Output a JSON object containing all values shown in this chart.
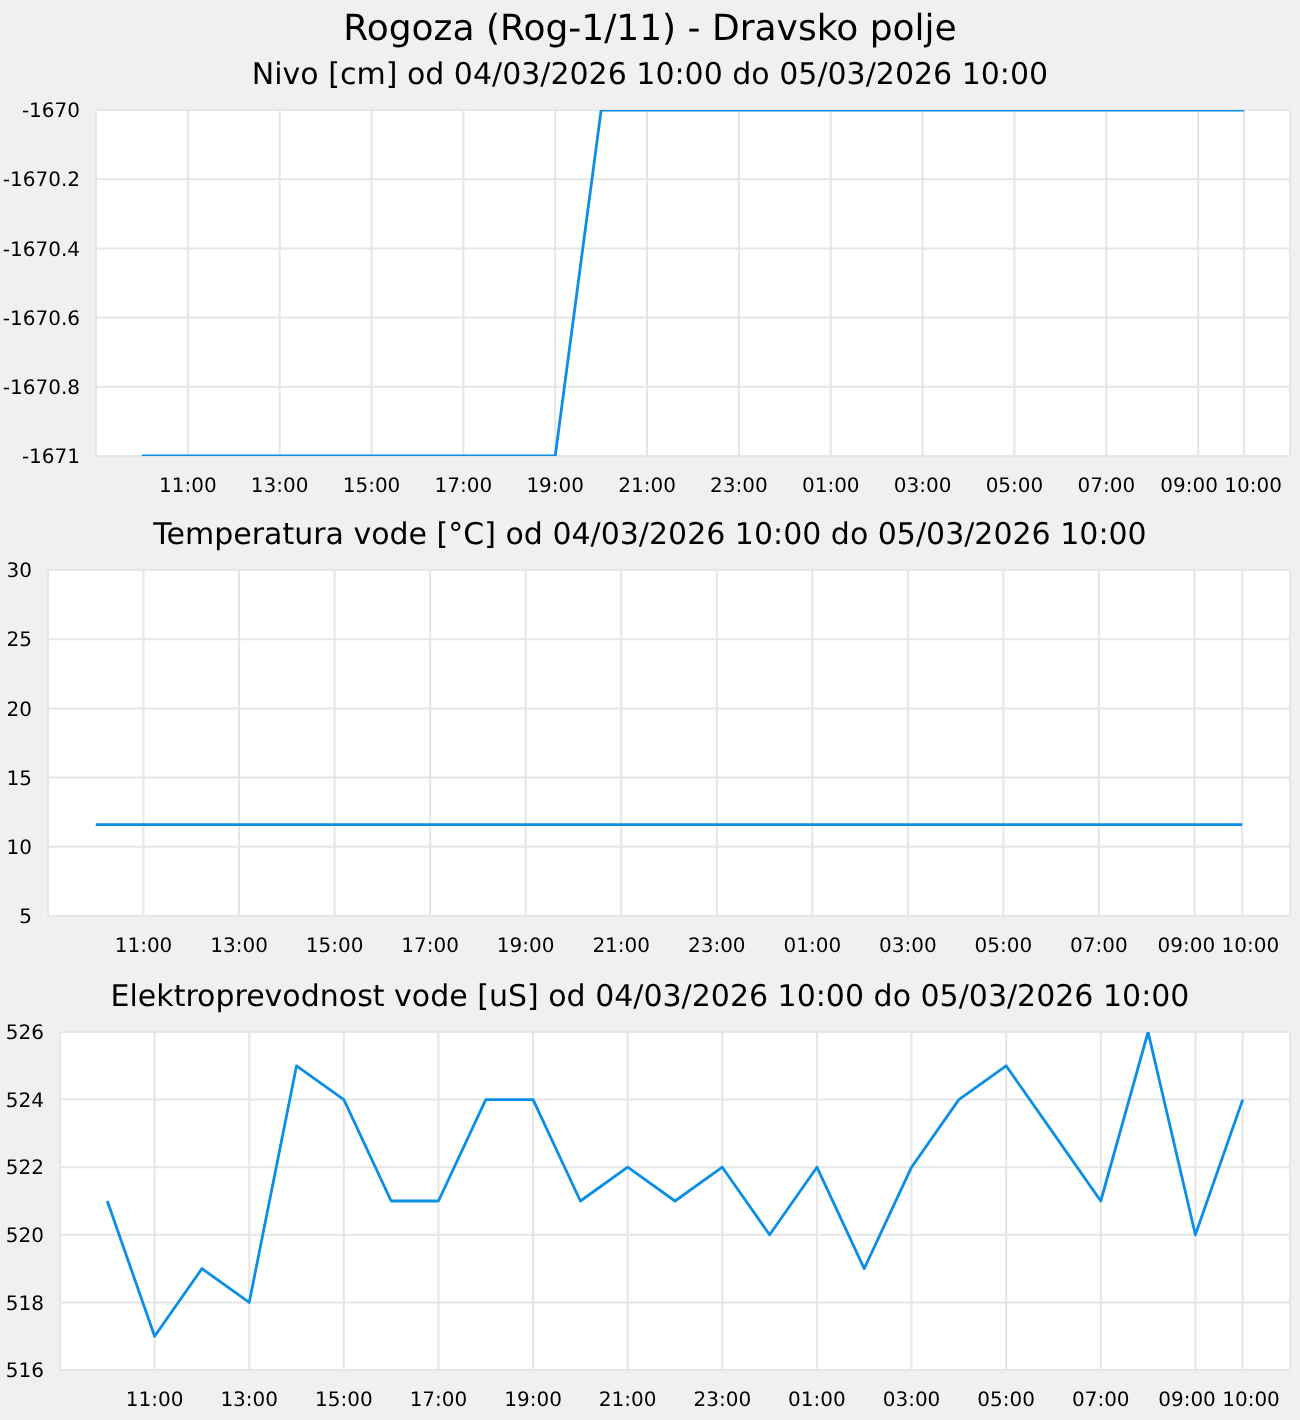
{
  "chart_data": [
    {
      "type": "line",
      "title": "Rogoza (Rog-1/11) - Dravsko polje",
      "subtitle": "Nivo [cm] od 04/03/2026 10:00 do 05/03/2026 10:00",
      "x": [
        "2026-03-04T10:00",
        "2026-03-04T11:00",
        "2026-03-04T12:00",
        "2026-03-04T13:00",
        "2026-03-04T14:00",
        "2026-03-04T15:00",
        "2026-03-04T16:00",
        "2026-03-04T17:00",
        "2026-03-04T18:00",
        "2026-03-04T19:00",
        "2026-03-04T20:00",
        "2026-03-04T21:00",
        "2026-03-04T22:00",
        "2026-03-04T23:00",
        "2026-03-05T00:00",
        "2026-03-05T01:00",
        "2026-03-05T02:00",
        "2026-03-05T03:00",
        "2026-03-05T04:00",
        "2026-03-05T05:00",
        "2026-03-05T06:00",
        "2026-03-05T07:00",
        "2026-03-05T08:00",
        "2026-03-05T09:00",
        "2026-03-05T10:00"
      ],
      "series": [
        {
          "color": "#0a8ee6",
          "values": [
            -1671,
            -1671,
            -1671,
            -1671,
            -1671,
            -1671,
            -1671,
            -1671,
            -1671,
            -1671,
            -1670,
            -1670,
            -1670,
            -1670,
            -1670,
            -1670,
            -1670,
            -1670,
            -1670,
            -1670,
            -1670,
            -1670,
            -1670,
            -1670,
            -1670
          ]
        }
      ],
      "xlim": [
        "2026-03-04T09:00",
        "2026-03-05T11:00"
      ],
      "xticks": [
        {
          "value": "2026-03-04T11:00",
          "label": "11:00"
        },
        {
          "value": "2026-03-04T13:00",
          "label": "13:00"
        },
        {
          "value": "2026-03-04T15:00",
          "label": "15:00"
        },
        {
          "value": "2026-03-04T17:00",
          "label": "17:00"
        },
        {
          "value": "2026-03-04T19:00",
          "label": "19:00"
        },
        {
          "value": "2026-03-04T21:00",
          "label": "21:00"
        },
        {
          "value": "2026-03-04T23:00",
          "label": "23:00"
        },
        {
          "value": "2026-03-05T01:00",
          "label": "01:00"
        },
        {
          "value": "2026-03-05T03:00",
          "label": "03:00"
        },
        {
          "value": "2026-03-05T05:00",
          "label": "05:00"
        },
        {
          "value": "2026-03-05T07:00",
          "label": "07:00"
        },
        {
          "value": "2026-03-05T09:00",
          "label": "09:00"
        },
        {
          "value": "2026-03-05T10:00",
          "label": "10:00"
        }
      ],
      "ylim": [
        -1671,
        -1670
      ],
      "yticks": [
        -1671,
        -1670.8,
        -1670.6,
        -1670.4,
        -1670.2,
        -1670
      ],
      "grid": true,
      "marker": "none",
      "line_style": "solid"
    },
    {
      "type": "line",
      "title": "Temperatura vode [°C] od 04/03/2026 10:00 do 05/03/2026 10:00",
      "x": [
        "2026-03-04T10:00",
        "2026-03-04T11:00",
        "2026-03-04T12:00",
        "2026-03-04T13:00",
        "2026-03-04T14:00",
        "2026-03-04T15:00",
        "2026-03-04T16:00",
        "2026-03-04T17:00",
        "2026-03-04T18:00",
        "2026-03-04T19:00",
        "2026-03-04T20:00",
        "2026-03-04T21:00",
        "2026-03-04T22:00",
        "2026-03-04T23:00",
        "2026-03-05T00:00",
        "2026-03-05T01:00",
        "2026-03-05T02:00",
        "2026-03-05T03:00",
        "2026-03-05T04:00",
        "2026-03-05T05:00",
        "2026-03-05T06:00",
        "2026-03-05T07:00",
        "2026-03-05T08:00",
        "2026-03-05T09:00",
        "2026-03-05T10:00"
      ],
      "series": [
        {
          "color": "#0a8ee6",
          "values": [
            11.6,
            11.6,
            11.6,
            11.6,
            11.6,
            11.6,
            11.6,
            11.6,
            11.6,
            11.6,
            11.6,
            11.6,
            11.6,
            11.6,
            11.6,
            11.6,
            11.6,
            11.6,
            11.6,
            11.6,
            11.6,
            11.6,
            11.6,
            11.6,
            11.6
          ]
        }
      ],
      "xlim": [
        "2026-03-04T09:00",
        "2026-03-05T11:00"
      ],
      "xticks": [
        {
          "value": "2026-03-04T11:00",
          "label": "11:00"
        },
        {
          "value": "2026-03-04T13:00",
          "label": "13:00"
        },
        {
          "value": "2026-03-04T15:00",
          "label": "15:00"
        },
        {
          "value": "2026-03-04T17:00",
          "label": "17:00"
        },
        {
          "value": "2026-03-04T19:00",
          "label": "19:00"
        },
        {
          "value": "2026-03-04T21:00",
          "label": "21:00"
        },
        {
          "value": "2026-03-04T23:00",
          "label": "23:00"
        },
        {
          "value": "2026-03-05T01:00",
          "label": "01:00"
        },
        {
          "value": "2026-03-05T03:00",
          "label": "03:00"
        },
        {
          "value": "2026-03-05T05:00",
          "label": "05:00"
        },
        {
          "value": "2026-03-05T07:00",
          "label": "07:00"
        },
        {
          "value": "2026-03-05T09:00",
          "label": "09:00"
        },
        {
          "value": "2026-03-05T10:00",
          "label": "10:00"
        }
      ],
      "ylim": [
        5,
        30
      ],
      "yticks": [
        5,
        10,
        15,
        20,
        25,
        30
      ],
      "grid": true,
      "marker": "none",
      "line_style": "solid"
    },
    {
      "type": "line",
      "title": "Elektroprevodnost vode [uS] od 04/03/2026 10:00 do 05/03/2026 10:00",
      "x": [
        "2026-03-04T10:00",
        "2026-03-04T11:00",
        "2026-03-04T12:00",
        "2026-03-04T13:00",
        "2026-03-04T14:00",
        "2026-03-04T15:00",
        "2026-03-04T16:00",
        "2026-03-04T17:00",
        "2026-03-04T18:00",
        "2026-03-04T19:00",
        "2026-03-04T20:00",
        "2026-03-04T21:00",
        "2026-03-04T22:00",
        "2026-03-04T23:00",
        "2026-03-05T00:00",
        "2026-03-05T01:00",
        "2026-03-05T02:00",
        "2026-03-05T03:00",
        "2026-03-05T04:00",
        "2026-03-05T05:00",
        "2026-03-05T06:00",
        "2026-03-05T07:00",
        "2026-03-05T08:00",
        "2026-03-05T09:00",
        "2026-03-05T10:00"
      ],
      "series": [
        {
          "color": "#0a8ee6",
          "values": [
            521,
            517,
            519,
            518,
            525,
            524,
            521,
            521,
            524,
            524,
            521,
            522,
            521,
            522,
            520,
            522,
            519,
            522,
            524,
            525,
            523,
            521,
            526,
            520,
            524
          ]
        }
      ],
      "xlim": [
        "2026-03-04T09:00",
        "2026-03-05T11:00"
      ],
      "xticks": [
        {
          "value": "2026-03-04T11:00",
          "label": "11:00"
        },
        {
          "value": "2026-03-04T13:00",
          "label": "13:00"
        },
        {
          "value": "2026-03-04T15:00",
          "label": "15:00"
        },
        {
          "value": "2026-03-04T17:00",
          "label": "17:00"
        },
        {
          "value": "2026-03-04T19:00",
          "label": "19:00"
        },
        {
          "value": "2026-03-04T21:00",
          "label": "21:00"
        },
        {
          "value": "2026-03-04T23:00",
          "label": "23:00"
        },
        {
          "value": "2026-03-05T01:00",
          "label": "01:00"
        },
        {
          "value": "2026-03-05T03:00",
          "label": "03:00"
        },
        {
          "value": "2026-03-05T05:00",
          "label": "05:00"
        },
        {
          "value": "2026-03-05T07:00",
          "label": "07:00"
        },
        {
          "value": "2026-03-05T09:00",
          "label": "09:00"
        },
        {
          "value": "2026-03-05T10:00",
          "label": "10:00"
        }
      ],
      "ylim": [
        516,
        526
      ],
      "yticks": [
        516,
        518,
        520,
        522,
        524,
        526
      ],
      "grid": true,
      "marker": "none",
      "line_style": "solid"
    }
  ]
}
